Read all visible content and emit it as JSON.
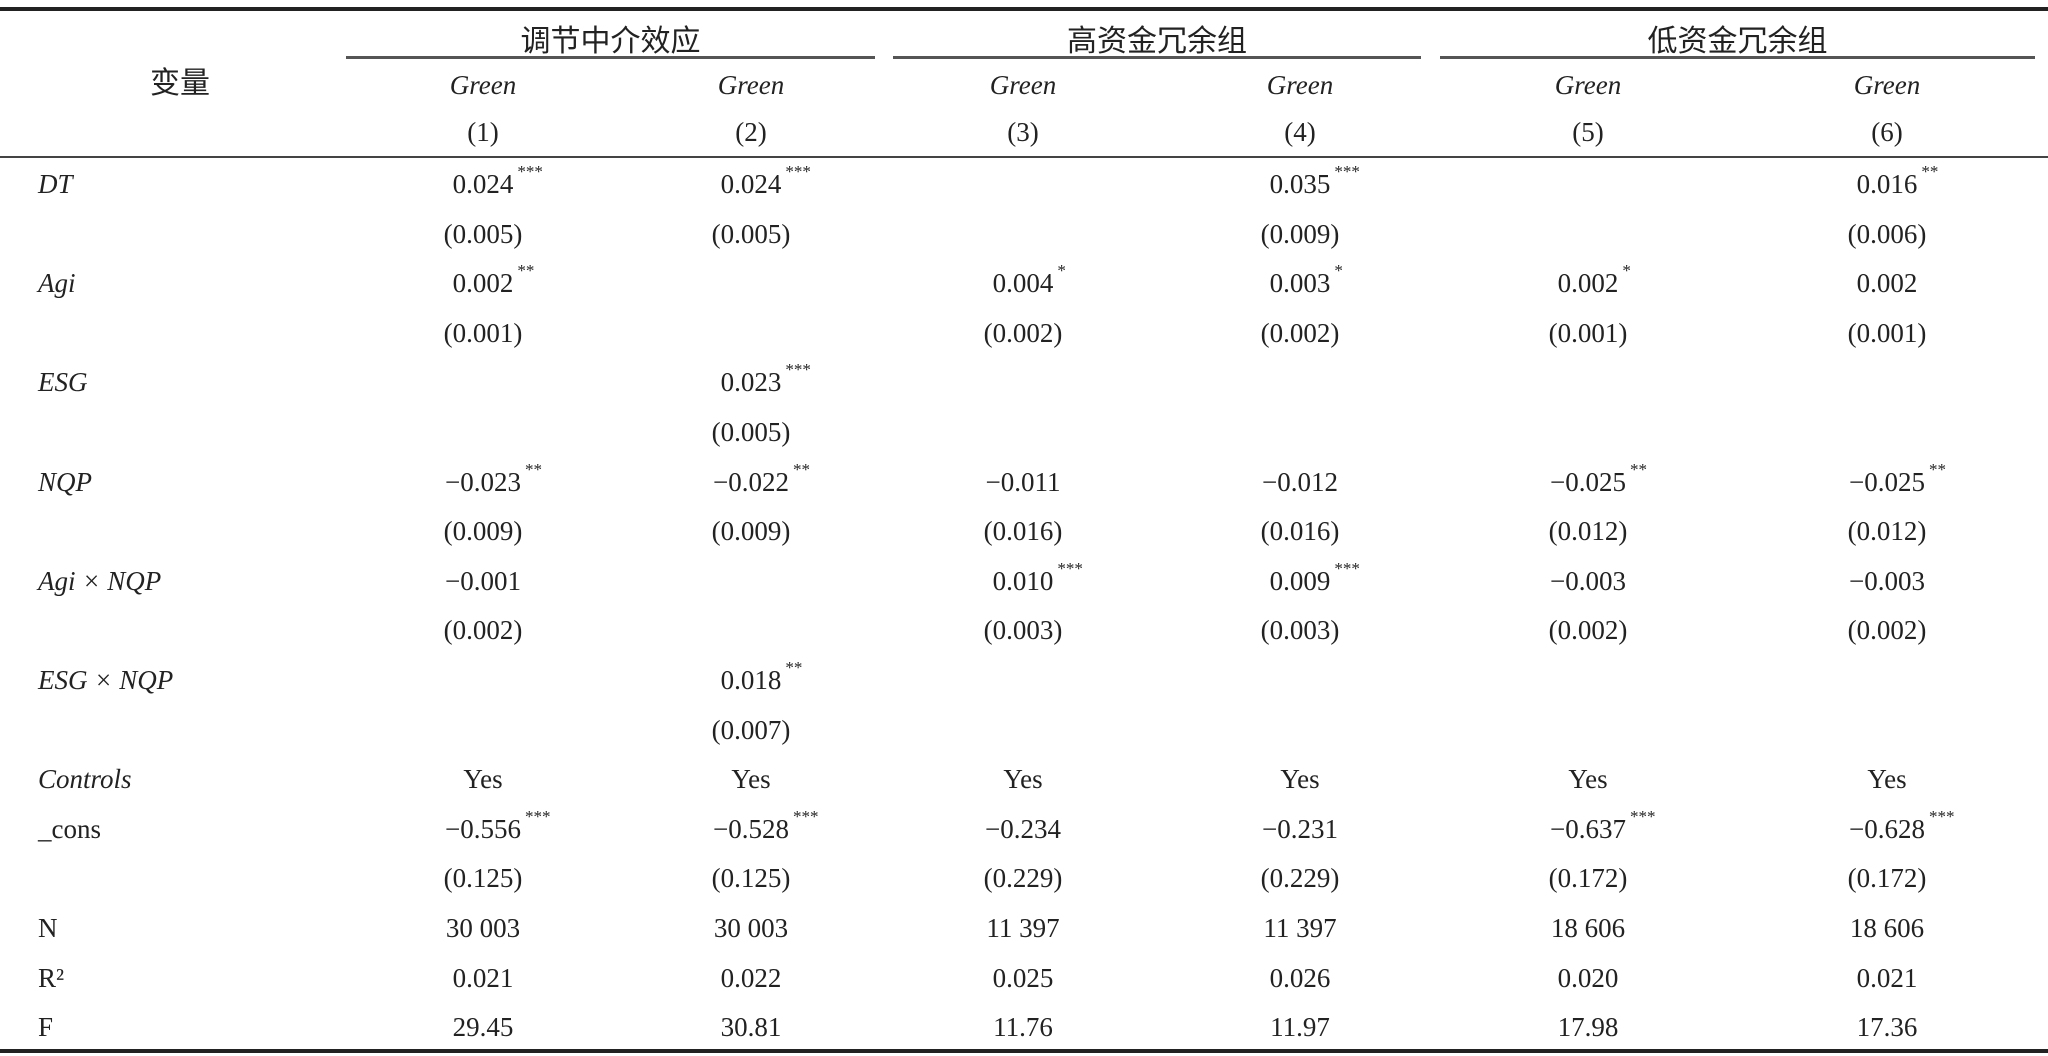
{
  "header": {
    "variable_label": "变量",
    "groups": [
      "调节中介效应",
      "高资金冗余组",
      "低资金冗余组"
    ],
    "dep_vars": [
      "Green",
      "Green",
      "Green",
      "Green",
      "Green",
      "Green"
    ],
    "col_numbers": [
      "(1)",
      "(2)",
      "(3)",
      "(4)",
      "(5)",
      "(6)"
    ]
  },
  "rows": [
    {
      "label": "DT",
      "italic": true,
      "coef": [
        [
          "0.024",
          "***"
        ],
        [
          "0.024",
          "***"
        ],
        [
          "",
          ""
        ],
        [
          "0.035",
          "***"
        ],
        [
          "",
          ""
        ],
        [
          "0.016",
          "**"
        ]
      ],
      "se": [
        "(0.005)",
        "(0.005)",
        "",
        "(0.009)",
        "",
        "(0.006)"
      ]
    },
    {
      "label": "Agi",
      "italic": true,
      "coef": [
        [
          "0.002",
          "**"
        ],
        [
          "",
          ""
        ],
        [
          "0.004",
          "*"
        ],
        [
          "0.003",
          "*"
        ],
        [
          "0.002",
          "*"
        ],
        [
          "0.002",
          ""
        ]
      ],
      "se": [
        "(0.001)",
        "",
        "(0.002)",
        "(0.002)",
        "(0.001)",
        "(0.001)"
      ]
    },
    {
      "label": "ESG",
      "italic": true,
      "coef": [
        [
          "",
          ""
        ],
        [
          "0.023",
          "***"
        ],
        [
          "",
          ""
        ],
        [
          "",
          ""
        ],
        [
          "",
          ""
        ],
        [
          "",
          ""
        ]
      ],
      "se": [
        "",
        "(0.005)",
        "",
        "",
        "",
        ""
      ]
    },
    {
      "label": "NQP",
      "italic": true,
      "coef": [
        [
          "−0.023",
          "**"
        ],
        [
          "−0.022",
          "**"
        ],
        [
          "−0.011",
          ""
        ],
        [
          "−0.012",
          ""
        ],
        [
          "−0.025",
          "**"
        ],
        [
          "−0.025",
          "**"
        ]
      ],
      "se": [
        "(0.009)",
        "(0.009)",
        "(0.016)",
        "(0.016)",
        "(0.012)",
        "(0.012)"
      ]
    },
    {
      "label": "Agi × NQP",
      "italic": true,
      "coef": [
        [
          "−0.001",
          ""
        ],
        [
          "",
          ""
        ],
        [
          "0.010",
          "***"
        ],
        [
          "0.009",
          "***"
        ],
        [
          "−0.003",
          ""
        ],
        [
          "−0.003",
          ""
        ]
      ],
      "se": [
        "(0.002)",
        "",
        "(0.003)",
        "(0.003)",
        "(0.002)",
        "(0.002)"
      ]
    },
    {
      "label": "ESG × NQP",
      "italic": true,
      "coef": [
        [
          "",
          ""
        ],
        [
          "0.018",
          "**"
        ],
        [
          "",
          ""
        ],
        [
          "",
          ""
        ],
        [
          "",
          ""
        ],
        [
          "",
          ""
        ]
      ],
      "se": [
        "",
        "(0.007)",
        "",
        "",
        "",
        ""
      ]
    },
    {
      "label": "Controls",
      "italic": true,
      "coef": [
        [
          "Yes",
          ""
        ],
        [
          "Yes",
          ""
        ],
        [
          "Yes",
          ""
        ],
        [
          "Yes",
          ""
        ],
        [
          "Yes",
          ""
        ],
        [
          "Yes",
          ""
        ]
      ]
    },
    {
      "label": "_cons",
      "italic": false,
      "coef": [
        [
          "−0.556",
          "***"
        ],
        [
          "−0.528",
          "***"
        ],
        [
          "−0.234",
          ""
        ],
        [
          "−0.231",
          ""
        ],
        [
          "−0.637",
          "***"
        ],
        [
          "−0.628",
          "***"
        ]
      ],
      "se": [
        "(0.125)",
        "(0.125)",
        "(0.229)",
        "(0.229)",
        "(0.172)",
        "(0.172)"
      ]
    },
    {
      "label": "N",
      "italic": false,
      "coef": [
        [
          "30 003",
          ""
        ],
        [
          "30 003",
          ""
        ],
        [
          "11 397",
          ""
        ],
        [
          "11 397",
          ""
        ],
        [
          "18 606",
          ""
        ],
        [
          "18 606",
          ""
        ]
      ]
    },
    {
      "label": "R²",
      "italic": false,
      "coef": [
        [
          "0.021",
          ""
        ],
        [
          "0.022",
          ""
        ],
        [
          "0.025",
          ""
        ],
        [
          "0.026",
          ""
        ],
        [
          "0.020",
          ""
        ],
        [
          "0.021",
          ""
        ]
      ]
    },
    {
      "label": "F",
      "italic": false,
      "coef": [
        [
          "29.45",
          ""
        ],
        [
          "30.81",
          ""
        ],
        [
          "11.76",
          ""
        ],
        [
          "11.97",
          ""
        ],
        [
          "17.98",
          ""
        ],
        [
          "17.36",
          ""
        ]
      ]
    }
  ]
}
